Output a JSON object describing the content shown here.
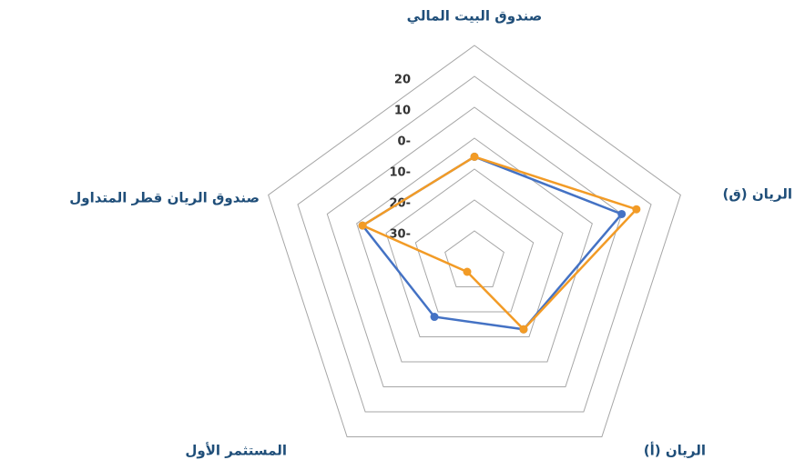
{
  "chart_data": {
    "type": "radar",
    "categories": [
      "صندوق البيت المالي",
      "الريان (ق)",
      "الريان (أ)",
      "المستثمر الأول",
      "صندوق الريان قطر المتداول"
    ],
    "series": [
      {
        "color": "#4472c4",
        "values": [
          -6,
          10,
          -13,
          -18,
          -2
        ]
      },
      {
        "color": "#f29b26",
        "values": [
          -6,
          15,
          -13,
          -36,
          -2
        ]
      }
    ],
    "ylim": [
      -40,
      30
    ],
    "yticks": [
      {
        "value": 20,
        "label": "20"
      },
      {
        "value": 10,
        "label": "10"
      },
      {
        "value": 0,
        "label": "0-"
      },
      {
        "value": -10,
        "label": "10-"
      },
      {
        "value": -20,
        "label": "20-"
      },
      {
        "value": -30,
        "label": "30-"
      }
    ],
    "grid": true
  }
}
